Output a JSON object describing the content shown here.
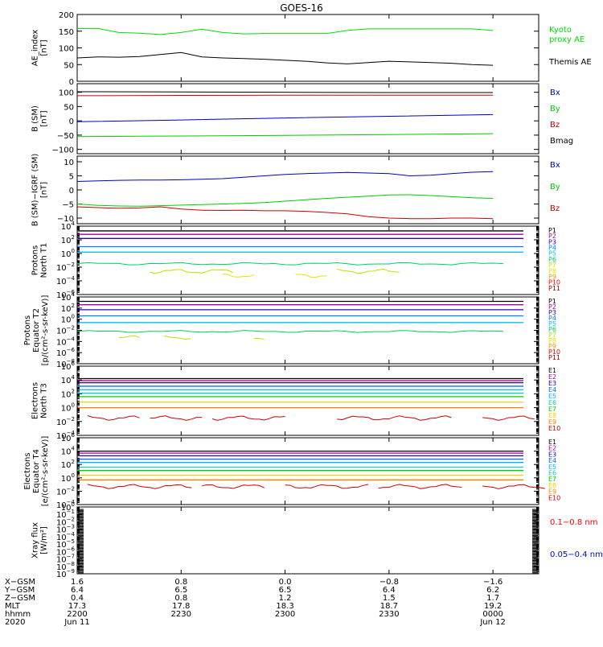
{
  "title": "GOES-16",
  "chart_data": [
    {
      "id": "ae",
      "type": "line",
      "ylabel": [
        "AE_index",
        "[nT]"
      ],
      "ylim": [
        0,
        200
      ],
      "yticks": [
        {
          "v": 0,
          "t": "0"
        },
        {
          "v": 50,
          "t": "50"
        },
        {
          "v": 100,
          "t": "100"
        },
        {
          "v": 150,
          "t": "150"
        },
        {
          "v": 200,
          "t": "200"
        }
      ],
      "x_hours": [
        0,
        0.1,
        0.2,
        0.3,
        0.4,
        0.5,
        0.6,
        0.7,
        0.8,
        0.9,
        1.0,
        1.1,
        1.2,
        1.3,
        1.4,
        1.5,
        1.6,
        1.7,
        1.8,
        1.9,
        2.0
      ],
      "series": [
        {
          "name": "Kyoto proxy AE",
          "label_lines": [
            "Kyoto",
            "proxy AE"
          ],
          "color": "#00dd00",
          "y": [
            158,
            158,
            146,
            144,
            140,
            146,
            156,
            146,
            142,
            143,
            143,
            143,
            143,
            152,
            157,
            157,
            157,
            157,
            157,
            157,
            152
          ]
        },
        {
          "name": "Themis AE",
          "label_lines": [
            "Themis AE"
          ],
          "color": "#000000",
          "y": [
            70,
            73,
            72,
            74,
            80,
            86,
            73,
            70,
            68,
            66,
            63,
            60,
            55,
            52,
            56,
            60,
            58,
            56,
            54,
            50,
            48
          ]
        }
      ]
    },
    {
      "id": "bsm",
      "type": "line",
      "ylabel": [
        "B (SM)",
        "[nT]"
      ],
      "ylim": [
        -115,
        130
      ],
      "yticks": [
        {
          "v": -100,
          "t": "−100"
        },
        {
          "v": -50,
          "t": "−50"
        },
        {
          "v": 0,
          "t": "0"
        },
        {
          "v": 50,
          "t": "50"
        },
        {
          "v": 100,
          "t": "100"
        }
      ],
      "x_hours": [
        0,
        0.5,
        1.0,
        1.5,
        2.0
      ],
      "series": [
        {
          "name": "Bx",
          "label_lines": [
            "Bx"
          ],
          "color": "#0000cc",
          "y": [
            -3,
            3,
            10,
            16,
            22
          ]
        },
        {
          "name": "By",
          "label_lines": [
            "By"
          ],
          "color": "#00cc00",
          "y": [
            -55,
            -53,
            -51,
            -48,
            -45
          ]
        },
        {
          "name": "Bz",
          "label_lines": [
            "Bz"
          ],
          "color": "#cc0000",
          "y": [
            88,
            89,
            90,
            90,
            90
          ]
        },
        {
          "name": "Bmag",
          "label_lines": [
            "Bmag"
          ],
          "color": "#000000",
          "y": [
            102,
            101,
            100,
            99,
            99
          ]
        }
      ]
    },
    {
      "id": "bigrf",
      "type": "line",
      "ylabel": [
        "B (SM)−IGRF (SM)",
        "[nT]"
      ],
      "ylim": [
        -12,
        12
      ],
      "yticks": [
        {
          "v": -10,
          "t": "−10"
        },
        {
          "v": -5,
          "t": "−5"
        },
        {
          "v": 0,
          "t": "0"
        },
        {
          "v": 5,
          "t": "5"
        },
        {
          "v": 10,
          "t": "10"
        }
      ],
      "x_hours": [
        0,
        0.1,
        0.2,
        0.3,
        0.4,
        0.5,
        0.6,
        0.7,
        0.8,
        0.9,
        1.0,
        1.1,
        1.2,
        1.3,
        1.4,
        1.5,
        1.6,
        1.7,
        1.8,
        1.9,
        2.0
      ],
      "series": [
        {
          "name": "Bx",
          "label_lines": [
            "Bx"
          ],
          "color": "#0000cc",
          "y": [
            3,
            3.2,
            3.4,
            3.5,
            3.5,
            3.6,
            3.8,
            4.0,
            4.5,
            5.0,
            5.5,
            5.8,
            6.0,
            6.2,
            6.0,
            5.8,
            5.0,
            5.2,
            5.8,
            6.3,
            6.5
          ]
        },
        {
          "name": "By",
          "label_lines": [
            "By"
          ],
          "color": "#00cc00",
          "y": [
            -5,
            -5.5,
            -5.7,
            -5.8,
            -5.6,
            -5.4,
            -5.2,
            -5.0,
            -4.8,
            -4.5,
            -4.0,
            -3.5,
            -3.0,
            -2.6,
            -2.2,
            -1.8,
            -1.7,
            -2.0,
            -2.4,
            -2.8,
            -3.0
          ]
        },
        {
          "name": "Bz",
          "label_lines": [
            "Bz"
          ],
          "color": "#cc0000",
          "y": [
            -6,
            -6.3,
            -6.5,
            -6.4,
            -6.0,
            -6.8,
            -7.2,
            -7.3,
            -7.2,
            -7.4,
            -7.4,
            -7.6,
            -8.0,
            -8.5,
            -9.5,
            -10.0,
            -10.2,
            -10.2,
            -10.0,
            -10.0,
            -10.2
          ]
        }
      ]
    },
    {
      "id": "protons_t1",
      "type": "line",
      "log": true,
      "ylabel": [
        "Protons",
        "North T1"
      ],
      "ylim": [
        -6,
        4
      ],
      "yticks": [
        {
          "v": -6,
          "e": "−6"
        },
        {
          "v": -4,
          "e": "−4"
        },
        {
          "v": -2,
          "e": "−2"
        },
        {
          "v": 0,
          "e": "0"
        },
        {
          "v": 2,
          "e": "2"
        },
        {
          "v": 4,
          "e": "4"
        }
      ],
      "series": [
        {
          "name": "P1",
          "color": "#000000",
          "y": 3.3
        },
        {
          "name": "P2",
          "color": "#a000a0",
          "y": 2.8
        },
        {
          "name": "P3",
          "color": "#3000c0",
          "y": 2.2
        },
        {
          "name": "P4",
          "color": "#0080ff",
          "y": 1.0
        },
        {
          "name": "P5",
          "color": "#00c0ff",
          "y": 0.2
        },
        {
          "name": "P6",
          "color": "#00d060",
          "y": -1.5,
          "wavy": true
        },
        {
          "name": "P7",
          "color": "#c0e000",
          "y": -2.6,
          "segments": [
            [
              0.35,
              0.75
            ],
            [
              1.25,
              1.55
            ]
          ]
        },
        {
          "name": "P8",
          "color": "#f0e000",
          "y": -3.2,
          "segments": [
            [
              0.7,
              0.85
            ],
            [
              1.05,
              1.2
            ]
          ]
        },
        {
          "name": "P9",
          "color": "#ff9000",
          "y": -4,
          "hidden": true
        },
        {
          "name": "P10",
          "color": "#ff0000",
          "y": -4.5,
          "hidden": true
        },
        {
          "name": "P11",
          "color": "#a00000",
          "y": -5,
          "hidden": true
        }
      ]
    },
    {
      "id": "protons_t2",
      "type": "line",
      "log": true,
      "ylabel": [
        "Protons",
        "Equator T2",
        "[p/(cm²-s-sr-keV)]"
      ],
      "ylim": [
        -8,
        4
      ],
      "yticks": [
        {
          "v": -8,
          "e": "−8"
        },
        {
          "v": -6,
          "e": "−6"
        },
        {
          "v": -4,
          "e": "−4"
        },
        {
          "v": -2,
          "e": "−2"
        },
        {
          "v": 0,
          "e": "0"
        },
        {
          "v": 2,
          "e": "2"
        },
        {
          "v": 4,
          "e": "4"
        }
      ],
      "series": [
        {
          "name": "P1",
          "color": "#000000",
          "y": 3.2
        },
        {
          "name": "P2",
          "color": "#a000a0",
          "y": 2.6
        },
        {
          "name": "P3",
          "color": "#3000c0",
          "y": 1.7
        },
        {
          "name": "P4",
          "color": "#0080ff",
          "y": 0.6
        },
        {
          "name": "P5",
          "color": "#00c0ff",
          "y": -0.6
        },
        {
          "name": "P6",
          "color": "#00d060",
          "y": -2.2,
          "wavy": true
        },
        {
          "name": "P7",
          "color": "#c0e000",
          "y": -3.3,
          "segments": [
            [
              0.2,
              0.3
            ],
            [
              0.42,
              0.55
            ],
            [
              0.85,
              0.9
            ]
          ]
        },
        {
          "name": "P8",
          "color": "#f0e000",
          "y": -4,
          "hidden": true
        },
        {
          "name": "P9",
          "color": "#ff9000",
          "y": -5,
          "hidden": true
        },
        {
          "name": "P10",
          "color": "#ff0000",
          "y": -6,
          "hidden": true
        },
        {
          "name": "P11",
          "color": "#a00000",
          "y": -7,
          "hidden": true
        }
      ]
    },
    {
      "id": "electrons_t3",
      "type": "line",
      "log": true,
      "ylabel": [
        "Electrons",
        "North T3"
      ],
      "ylim": [
        -4,
        6
      ],
      "yticks": [
        {
          "v": -4,
          "e": "−4"
        },
        {
          "v": -2,
          "e": "−2"
        },
        {
          "v": 0,
          "e": "0"
        },
        {
          "v": 2,
          "e": "2"
        },
        {
          "v": 4,
          "e": "4"
        },
        {
          "v": 6,
          "e": "6"
        }
      ],
      "series": [
        {
          "name": "E1",
          "color": "#000000",
          "y": 4.2
        },
        {
          "name": "E2",
          "color": "#a000a0",
          "y": 3.9
        },
        {
          "name": "E3",
          "color": "#2000c0",
          "y": 3.6
        },
        {
          "name": "E4",
          "color": "#0070ff",
          "y": 3.1
        },
        {
          "name": "E5",
          "color": "#00b0ff",
          "y": 2.6
        },
        {
          "name": "E6",
          "color": "#00d0c0",
          "y": 2.1
        },
        {
          "name": "E7",
          "color": "#00d000",
          "y": 1.6
        },
        {
          "name": "E8",
          "color": "#f0d000",
          "y": 0.8
        },
        {
          "name": "E9",
          "color": "#ff8000",
          "y": 0
        },
        {
          "name": "E10",
          "color": "#cc0000",
          "y": -1.5,
          "segments": [
            [
              0.05,
              0.3
            ],
            [
              0.35,
              0.6
            ],
            [
              0.65,
              1.0
            ],
            [
              1.25,
              1.8
            ],
            [
              1.95,
              2.2
            ]
          ]
        }
      ]
    },
    {
      "id": "electrons_t4",
      "type": "line",
      "log": true,
      "ylabel": [
        "Electrons",
        "Equator T4",
        "[e/(cm²-s-sr-keV)]"
      ],
      "ylim": [
        -4,
        6
      ],
      "yticks": [
        {
          "v": -4,
          "e": "−4"
        },
        {
          "v": -2,
          "e": "−2"
        },
        {
          "v": 0,
          "e": "0"
        },
        {
          "v": 2,
          "e": "2"
        },
        {
          "v": 4,
          "e": "4"
        },
        {
          "v": 6,
          "e": "6"
        }
      ],
      "series": [
        {
          "name": "E1",
          "color": "#000000",
          "y": 4.0
        },
        {
          "name": "E2",
          "color": "#a000a0",
          "y": 3.7
        },
        {
          "name": "E3",
          "color": "#2000c0",
          "y": 3.3
        },
        {
          "name": "E4",
          "color": "#0070ff",
          "y": 2.8
        },
        {
          "name": "E5",
          "color": "#00b0ff",
          "y": 2.3
        },
        {
          "name": "E6",
          "color": "#00d0c0",
          "y": 1.6
        },
        {
          "name": "E7",
          "color": "#00d000",
          "y": 1.1
        },
        {
          "name": "E8",
          "color": "#f0d000",
          "y": 0.4
        },
        {
          "name": "E9",
          "color": "#ff8000",
          "y": -0.3
        },
        {
          "name": "E10",
          "color": "#cc0000",
          "y": -1.3,
          "segments": [
            [
              0.05,
              0.55
            ],
            [
              0.6,
              0.9
            ],
            [
              1.0,
              1.4
            ],
            [
              1.45,
              1.85
            ],
            [
              1.95,
              2.25
            ]
          ]
        }
      ]
    },
    {
      "id": "xray",
      "type": "line",
      "log": true,
      "ylabel": [
        "Xray flux",
        "[W/m²]"
      ],
      "ylim": [
        -9,
        0
      ],
      "yticks": [
        {
          "v": -9,
          "e": "−9"
        },
        {
          "v": -8,
          "e": "−8"
        },
        {
          "v": -7,
          "e": "−7"
        },
        {
          "v": -6,
          "e": "−6"
        },
        {
          "v": -5,
          "e": "−5"
        },
        {
          "v": -4,
          "e": "−4"
        },
        {
          "v": -3,
          "e": "−3"
        },
        {
          "v": -2,
          "e": "−2"
        },
        {
          "v": -1,
          "e": "−1"
        },
        {
          "v": 0,
          "e": "0"
        }
      ],
      "series": [
        {
          "name": "0.1−0.8 nm",
          "label_lines": [
            "0.1−0.8 nm"
          ],
          "color": "#ff0000",
          "y": null
        },
        {
          "name": "0.05−0.4 nm",
          "label_lines": [
            "0.05−0.4 nm"
          ],
          "color": "#0000ff",
          "y": null
        }
      ]
    }
  ],
  "xaxis": {
    "row_labels": [
      "X−GSM",
      "Y−GSM",
      "Z−GSM",
      "MLT",
      "hhmm",
      "2020"
    ],
    "columns": [
      {
        "hours": 0,
        "values": [
          "1.6",
          "6.4",
          "0.4",
          "17.3",
          "2200",
          "Jun 11"
        ]
      },
      {
        "hours": 0.5,
        "values": [
          "0.8",
          "6.5",
          "0.8",
          "17.8",
          "2230",
          ""
        ]
      },
      {
        "hours": 1.0,
        "values": [
          "0.0",
          "6.5",
          "1.2",
          "18.3",
          "2300",
          ""
        ]
      },
      {
        "hours": 1.5,
        "values": [
          "−0.8",
          "6.4",
          "1.5",
          "18.7",
          "2330",
          ""
        ]
      },
      {
        "hours": 2.0,
        "values": [
          "−1.6",
          "6.2",
          "1.7",
          "19.2",
          "0000",
          "Jun 12"
        ]
      }
    ]
  }
}
